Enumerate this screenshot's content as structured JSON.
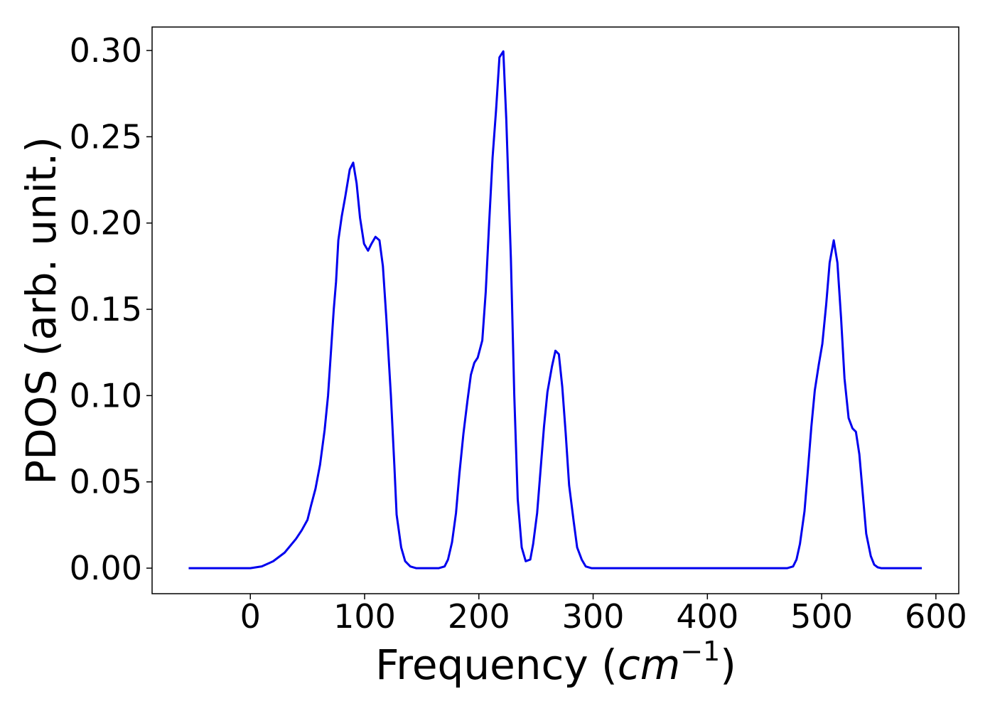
{
  "chart_data": {
    "type": "line",
    "ylabel": "PDOS (arb. unit.)",
    "xlabel": [
      "Frequency (",
      "cm",
      "−1",
      ")"
    ],
    "xlim": [
      -86,
      620
    ],
    "ylim": [
      -0.0148,
      0.3136
    ],
    "xticks": [
      0,
      100,
      200,
      300,
      400,
      500,
      600
    ],
    "yticks": [
      {
        "value": 0,
        "label": "0.00"
      },
      0.05,
      {
        "value": 0.1,
        "label": "0.10"
      },
      0.15,
      {
        "value": 0.2,
        "label": "0.20"
      },
      0.25,
      {
        "value": 0.3,
        "label": "0.30"
      }
    ],
    "series": [
      {
        "color": "#0000ee",
        "x": [
          -54,
          0,
          10,
          20,
          30,
          40,
          45,
          50,
          53,
          57,
          61,
          65,
          68,
          71,
          73,
          75,
          77,
          80,
          83,
          87,
          90,
          93,
          96,
          99.5,
          103,
          106,
          109.5,
          113,
          116,
          119,
          123,
          126,
          128,
          132,
          135.5,
          140,
          145,
          165,
          170,
          173,
          176.5,
          180,
          183,
          186.5,
          190,
          193,
          196,
          199,
          203,
          206,
          209,
          212,
          215,
          218,
          221.4,
          224,
          228,
          231,
          234,
          237.5,
          241,
          245,
          247.5,
          251,
          254,
          257,
          260,
          264,
          267,
          270,
          273,
          276,
          279,
          283,
          286,
          290,
          293.5,
          298.5,
          470,
          475,
          478,
          481,
          485,
          488,
          491,
          494,
          497.5,
          500.6,
          504,
          507,
          510.6,
          513.8,
          517,
          520,
          523.6,
          527,
          530,
          533,
          536,
          539,
          543,
          546,
          549,
          552,
          587.7
        ],
        "values": [
          0,
          0,
          0.001,
          0.004,
          0.009,
          0.017,
          0.022,
          0.028,
          0.036,
          0.046,
          0.06,
          0.08,
          0.1,
          0.13,
          0.15,
          0.166,
          0.19,
          0.204,
          0.215,
          0.231,
          0.235,
          0.223,
          0.203,
          0.188,
          0.184,
          0.188,
          0.192,
          0.19,
          0.175,
          0.145,
          0.1,
          0.06,
          0.031,
          0.012,
          0.004,
          0.001,
          0,
          0,
          0.001,
          0.005,
          0.015,
          0.032,
          0.055,
          0.078,
          0.097,
          0.112,
          0.119,
          0.122,
          0.132,
          0.16,
          0.2,
          0.238,
          0.265,
          0.296,
          0.2995,
          0.26,
          0.18,
          0.1,
          0.04,
          0.012,
          0.004,
          0.005,
          0.014,
          0.032,
          0.057,
          0.082,
          0.102,
          0.117,
          0.126,
          0.124,
          0.105,
          0.078,
          0.048,
          0.027,
          0.012,
          0.005,
          0.001,
          0,
          0,
          0.001,
          0.005,
          0.014,
          0.033,
          0.057,
          0.082,
          0.103,
          0.118,
          0.13,
          0.153,
          0.177,
          0.19,
          0.177,
          0.145,
          0.11,
          0.087,
          0.081,
          0.079,
          0.066,
          0.043,
          0.02,
          0.007,
          0.002,
          0.0005,
          0,
          0
        ]
      }
    ]
  }
}
